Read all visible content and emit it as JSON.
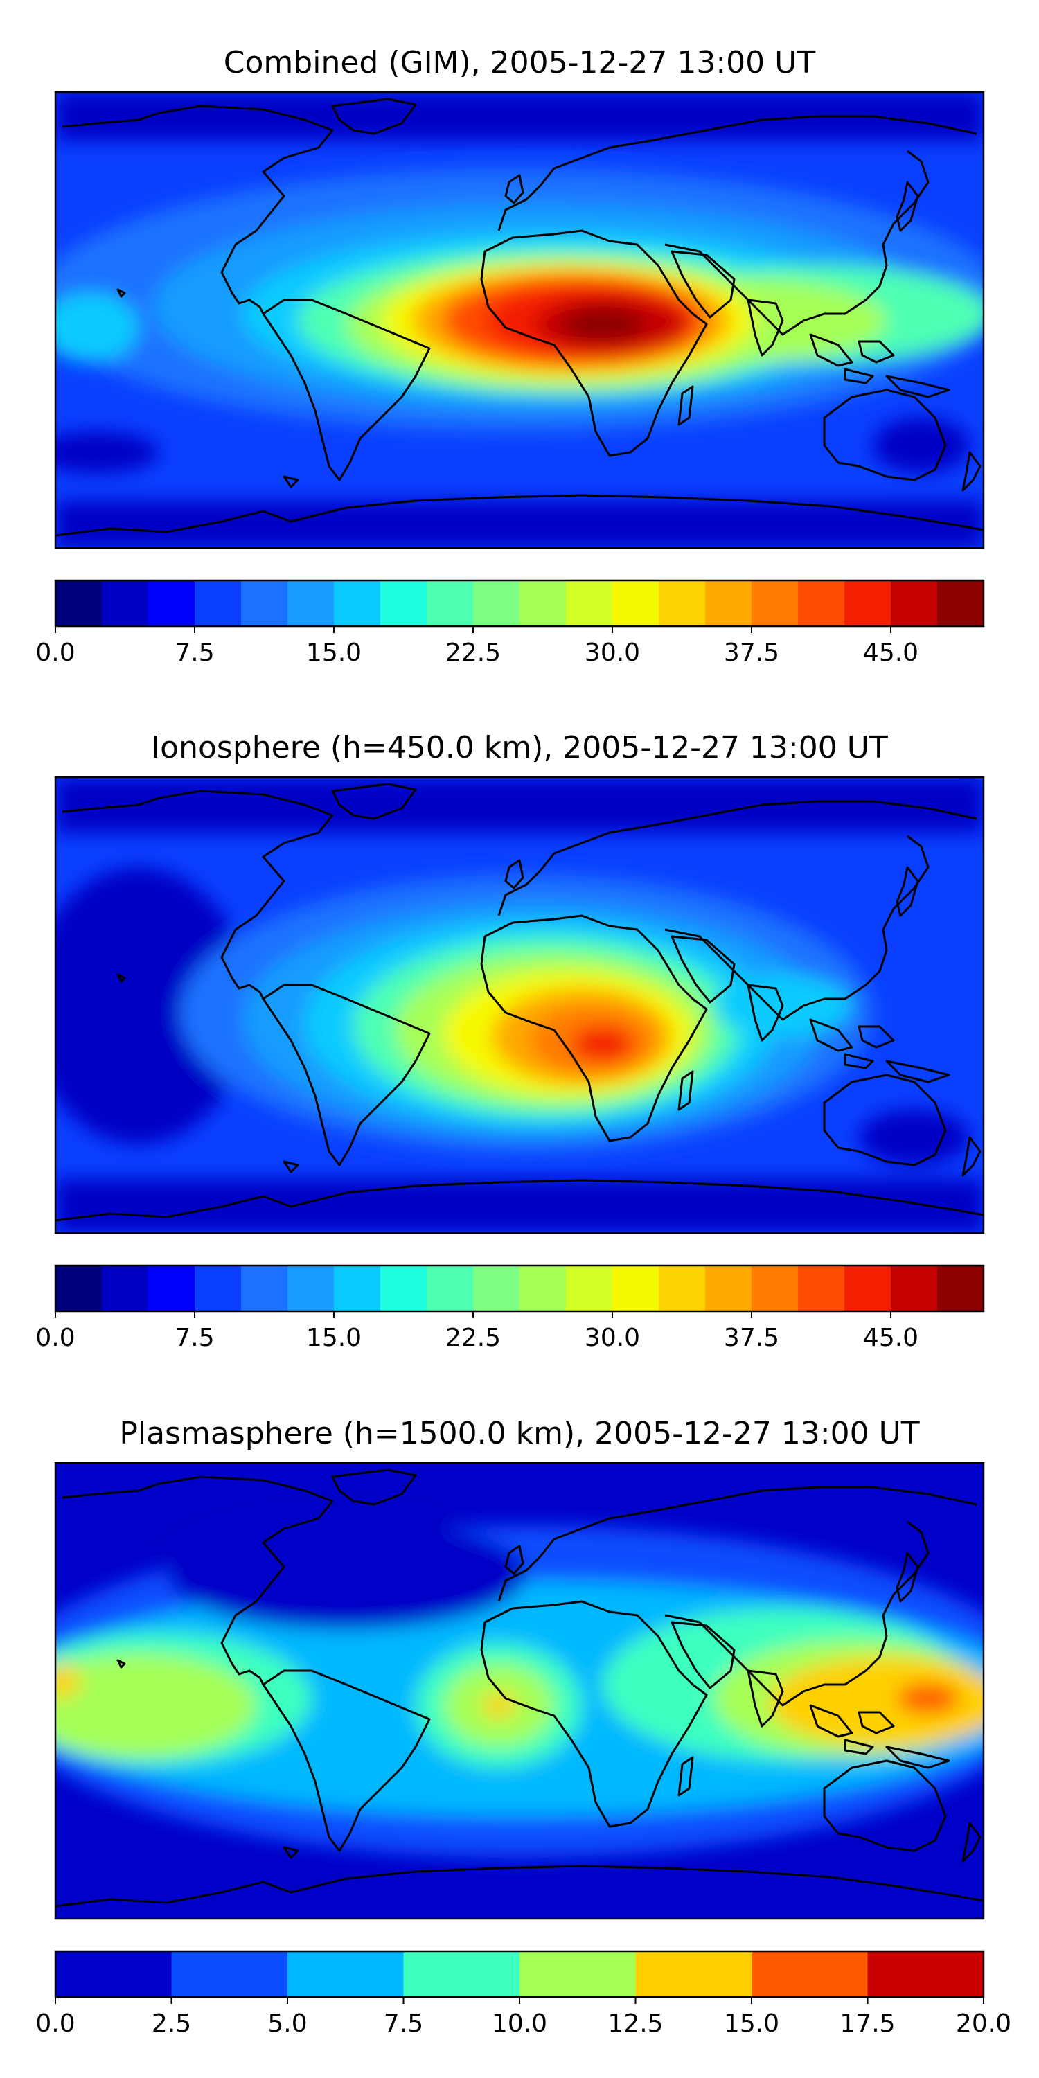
{
  "panels": [
    {
      "title": "Combined (GIM), 2005-12-27 13:00 UT",
      "colorbar": {
        "min": 0,
        "max": 50,
        "levels": 20,
        "tick_labels": [
          "0.0",
          "7.5",
          "15.0",
          "22.5",
          "30.0",
          "37.5",
          "45.0"
        ],
        "tick_values": [
          0,
          7.5,
          15,
          22.5,
          30,
          37.5,
          45
        ],
        "colors": [
          "#00007f",
          "#0000c5",
          "#0000ff",
          "#0a3fff",
          "#1c72ff",
          "#199cff",
          "#09cbff",
          "#1fffe0",
          "#4dffb3",
          "#7dff84",
          "#a6ff57",
          "#d3ff26",
          "#f6f900",
          "#ffd400",
          "#ffa800",
          "#ff7c00",
          "#ff4c00",
          "#f41f00",
          "#c40000",
          "#8c0000"
        ]
      }
    },
    {
      "title": "Ionosphere  (h=450.0 km), 2005-12-27 13:00 UT",
      "colorbar": {
        "min": 0,
        "max": 50,
        "levels": 20,
        "tick_labels": [
          "0.0",
          "7.5",
          "15.0",
          "22.5",
          "30.0",
          "37.5",
          "45.0"
        ],
        "tick_values": [
          0,
          7.5,
          15,
          22.5,
          30,
          37.5,
          45
        ],
        "colors": [
          "#00007f",
          "#0000c5",
          "#0000ff",
          "#0a3fff",
          "#1c72ff",
          "#199cff",
          "#09cbff",
          "#1fffe0",
          "#4dffb3",
          "#7dff84",
          "#a6ff57",
          "#d3ff26",
          "#f6f900",
          "#ffd400",
          "#ffa800",
          "#ff7c00",
          "#ff4c00",
          "#f41f00",
          "#c40000",
          "#8c0000"
        ]
      }
    },
    {
      "title": "Plasmasphere (h=1500.0 km), 2005-12-27 13:00 UT",
      "colorbar": {
        "min": 0,
        "max": 20,
        "levels": 8,
        "tick_labels": [
          "0.0",
          "2.5",
          "5.0",
          "7.5",
          "10.0",
          "12.5",
          "15.0",
          "17.5",
          "20.0"
        ],
        "tick_values": [
          0,
          2.5,
          5,
          7.5,
          10,
          12.5,
          15,
          17.5,
          20
        ],
        "colors": [
          "#0000c8",
          "#0a4dff",
          "#00b8ff",
          "#3dffc0",
          "#a6ff57",
          "#ffd000",
          "#ff5a00",
          "#c80000"
        ]
      }
    }
  ]
}
